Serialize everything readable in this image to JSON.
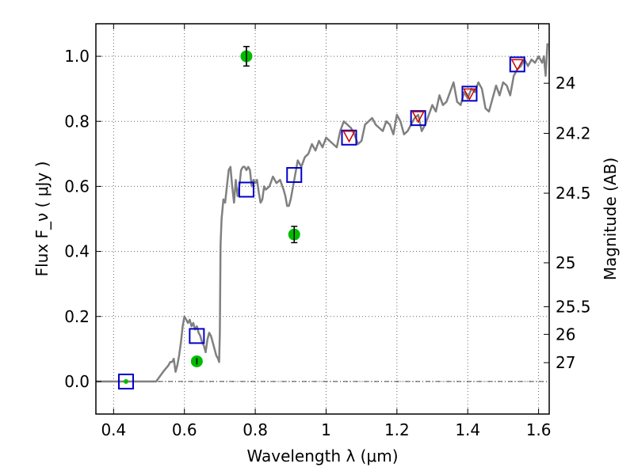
{
  "chart_data": {
    "type": "scatter",
    "xlabel": "Wavelength  λ (μm)",
    "ylabel": "Flux  F_ν  ( μJy )",
    "ylabel_right": "Magnitude (AB)",
    "xlim": [
      0.35,
      1.63
    ],
    "ylim": [
      -0.1,
      1.1
    ],
    "grid": true,
    "x_ticks": [
      0.4,
      0.6,
      0.8,
      1.0,
      1.2,
      1.4,
      1.6
    ],
    "x_tick_labels": [
      "0.4",
      "0.6",
      "0.8",
      "1",
      "1.2",
      "1.4",
      "1.6"
    ],
    "y_ticks": [
      0.0,
      0.2,
      0.4,
      0.6,
      0.8,
      1.0
    ],
    "y_tick_labels": [
      "0.0",
      "0.2",
      "0.4",
      "0.6",
      "0.8",
      "1.0"
    ],
    "right_axis_ticks": [
      {
        "label": "24",
        "flux": 0.917
      },
      {
        "label": "24.2",
        "flux": 0.763
      },
      {
        "label": "24.5",
        "flux": 0.579
      },
      {
        "label": "25",
        "flux": 0.365
      },
      {
        "label": "25.5",
        "flux": 0.23
      },
      {
        "label": "26",
        "flux": 0.145
      },
      {
        "label": "27",
        "flux": 0.058
      }
    ],
    "zero_line": {
      "y": 0.0
    },
    "series": [
      {
        "style": "model-spectrum-line",
        "color": "#808080",
        "x": [
          0.35,
          0.52,
          0.54,
          0.555,
          0.56,
          0.565,
          0.57,
          0.575,
          0.58,
          0.585,
          0.59,
          0.595,
          0.6,
          0.605,
          0.61,
          0.615,
          0.62,
          0.625,
          0.63,
          0.635,
          0.64,
          0.645,
          0.65,
          0.655,
          0.66,
          0.665,
          0.67,
          0.675,
          0.68,
          0.685,
          0.69,
          0.695,
          0.698,
          0.7,
          0.702,
          0.705,
          0.71,
          0.715,
          0.72,
          0.725,
          0.73,
          0.735,
          0.74,
          0.745,
          0.75,
          0.755,
          0.76,
          0.765,
          0.77,
          0.775,
          0.78,
          0.785,
          0.79,
          0.795,
          0.8,
          0.805,
          0.81,
          0.815,
          0.82,
          0.825,
          0.83,
          0.84,
          0.85,
          0.86,
          0.87,
          0.88,
          0.885,
          0.89,
          0.895,
          0.9,
          0.91,
          0.92,
          0.93,
          0.94,
          0.95,
          0.96,
          0.97,
          0.98,
          0.99,
          1.0,
          1.01,
          1.02,
          1.03,
          1.04,
          1.05,
          1.06,
          1.07,
          1.08,
          1.09,
          1.1,
          1.11,
          1.12,
          1.13,
          1.14,
          1.15,
          1.16,
          1.17,
          1.18,
          1.19,
          1.2,
          1.21,
          1.22,
          1.23,
          1.24,
          1.25,
          1.26,
          1.27,
          1.28,
          1.29,
          1.3,
          1.31,
          1.32,
          1.33,
          1.34,
          1.35,
          1.36,
          1.37,
          1.38,
          1.39,
          1.4,
          1.41,
          1.42,
          1.43,
          1.44,
          1.45,
          1.46,
          1.47,
          1.48,
          1.49,
          1.5,
          1.51,
          1.52,
          1.53,
          1.54,
          1.55,
          1.56,
          1.57,
          1.58,
          1.59,
          1.6,
          1.61,
          1.615,
          1.62,
          1.625
        ],
        "values": [
          0.0,
          0.0,
          0.03,
          0.05,
          0.06,
          0.06,
          0.07,
          0.03,
          0.05,
          0.08,
          0.12,
          0.17,
          0.2,
          0.19,
          0.18,
          0.19,
          0.17,
          0.18,
          0.16,
          0.17,
          0.15,
          0.14,
          0.12,
          0.11,
          0.09,
          0.13,
          0.15,
          0.14,
          0.12,
          0.1,
          0.08,
          0.07,
          0.06,
          0.15,
          0.42,
          0.5,
          0.56,
          0.55,
          0.6,
          0.65,
          0.66,
          0.6,
          0.55,
          0.62,
          0.57,
          0.6,
          0.65,
          0.66,
          0.66,
          0.65,
          0.66,
          0.65,
          0.6,
          0.62,
          0.61,
          0.62,
          0.58,
          0.55,
          0.56,
          0.6,
          0.59,
          0.6,
          0.63,
          0.61,
          0.62,
          0.59,
          0.57,
          0.54,
          0.54,
          0.56,
          0.62,
          0.68,
          0.66,
          0.69,
          0.7,
          0.73,
          0.71,
          0.74,
          0.72,
          0.75,
          0.74,
          0.73,
          0.72,
          0.77,
          0.8,
          0.79,
          0.78,
          0.76,
          0.73,
          0.74,
          0.79,
          0.8,
          0.81,
          0.79,
          0.78,
          0.77,
          0.8,
          0.79,
          0.76,
          0.82,
          0.8,
          0.76,
          0.77,
          0.79,
          0.81,
          0.82,
          0.77,
          0.79,
          0.82,
          0.85,
          0.83,
          0.88,
          0.85,
          0.86,
          0.89,
          0.92,
          0.86,
          0.85,
          0.89,
          0.87,
          0.9,
          0.89,
          0.92,
          0.9,
          0.84,
          0.83,
          0.87,
          0.91,
          0.88,
          0.92,
          0.91,
          0.88,
          0.94,
          0.96,
          0.97,
          0.99,
          0.97,
          0.99,
          0.98,
          1.0,
          0.98,
          1.0,
          0.94,
          1.04
        ]
      },
      {
        "style": "blue-open-square",
        "color": "#0000cc",
        "x": [
          0.435,
          0.635,
          0.775,
          0.91,
          1.065,
          1.26,
          1.405,
          1.54
        ],
        "values": [
          0.0,
          0.14,
          0.59,
          0.635,
          0.75,
          0.81,
          0.885,
          0.975
        ]
      },
      {
        "style": "red-open-triangle-down",
        "color": "#cc0000",
        "x": [
          1.065,
          1.26,
          1.405,
          1.54
        ],
        "values": [
          0.755,
          0.815,
          0.885,
          0.975
        ]
      },
      {
        "style": "green-filled-circle-errorbar",
        "color": "#00bb00",
        "x": [
          0.435,
          0.635,
          0.775,
          0.91
        ],
        "values": [
          0.0,
          0.062,
          1.0,
          0.452
        ],
        "errors": [
          0.0,
          0.01,
          0.03,
          0.025
        ]
      }
    ]
  }
}
